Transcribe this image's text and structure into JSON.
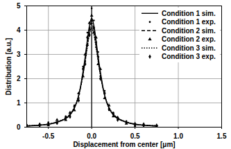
{
  "chart_data": {
    "type": "line",
    "xlabel": "Displacement from center [μm]",
    "ylabel": "Distribution [a.u.]",
    "x": [
      -0.75,
      -0.6,
      -0.5,
      -0.4,
      -0.3,
      -0.25,
      -0.2,
      -0.15,
      -0.1,
      -0.075,
      -0.05,
      -0.025,
      0,
      0.025,
      0.05,
      0.075,
      0.1,
      0.15,
      0.2,
      0.25,
      0.3,
      0.4,
      0.5,
      0.6,
      0.75
    ],
    "series": [
      {
        "name": "Condition 1 sim.",
        "type": "line",
        "line_style": "solid",
        "color": "#000000",
        "values": [
          0.05,
          0.08,
          0.12,
          0.2,
          0.35,
          0.5,
          0.78,
          1.3,
          2.3,
          2.9,
          3.6,
          4.2,
          4.5,
          4.2,
          3.6,
          2.9,
          2.3,
          1.3,
          0.78,
          0.5,
          0.35,
          0.2,
          0.12,
          0.08,
          0.05
        ]
      },
      {
        "name": "Condition 1 exp.",
        "type": "scatter",
        "marker": "circle",
        "color": "#000000",
        "values": [
          0.1,
          0.05,
          0.2,
          0.15,
          0.45,
          0.4,
          0.9,
          1.2,
          2.5,
          2.7,
          3.9,
          4.0,
          4.9,
          4.4,
          3.3,
          3.1,
          2.1,
          1.5,
          0.7,
          0.6,
          0.3,
          0.25,
          0.1,
          0.05,
          0.0
        ]
      },
      {
        "name": "Condition 2 sim.",
        "type": "line",
        "line_style": "dashed",
        "color": "#000000",
        "values": [
          0.05,
          0.08,
          0.12,
          0.21,
          0.37,
          0.52,
          0.8,
          1.3,
          2.2,
          2.8,
          3.45,
          4.0,
          4.3,
          4.0,
          3.45,
          2.8,
          2.2,
          1.3,
          0.8,
          0.52,
          0.37,
          0.21,
          0.12,
          0.08,
          0.05
        ]
      },
      {
        "name": "Condition 2 exp.",
        "type": "scatter",
        "marker": "triangle",
        "color": "#000000",
        "values": [
          0.0,
          0.12,
          0.08,
          0.3,
          0.3,
          0.6,
          0.7,
          1.4,
          2.1,
          3.0,
          3.4,
          4.3,
          4.6,
          3.9,
          3.7,
          2.6,
          2.4,
          1.2,
          0.9,
          0.45,
          0.4,
          0.15,
          0.15,
          0.1,
          0.08
        ]
      },
      {
        "name": "Condition 3 sim.",
        "type": "line",
        "line_style": "dotted",
        "color": "#000000",
        "values": [
          0.06,
          0.09,
          0.13,
          0.22,
          0.38,
          0.54,
          0.82,
          1.32,
          2.15,
          2.7,
          3.3,
          3.85,
          4.1,
          3.85,
          3.3,
          2.7,
          2.15,
          1.32,
          0.82,
          0.54,
          0.38,
          0.22,
          0.13,
          0.09,
          0.06
        ]
      },
      {
        "name": "Condition 3 exp.",
        "type": "scatter",
        "marker": "diamond",
        "color": "#000000",
        "values": [
          0.08,
          0.1,
          0.15,
          0.18,
          0.4,
          0.45,
          0.85,
          1.1,
          2.4,
          2.6,
          3.7,
          3.8,
          4.4,
          4.1,
          3.5,
          2.9,
          2.0,
          1.4,
          0.75,
          0.55,
          0.3,
          0.2,
          0.05,
          0.12,
          0.02
        ]
      }
    ],
    "xlim": [
      -0.75,
      1.5
    ],
    "xticks": [
      {
        "value": -0.5,
        "label": "-0.5"
      },
      {
        "value": 0,
        "label": "0.0"
      },
      {
        "value": 0.5,
        "label": "0.5"
      },
      {
        "value": 1,
        "label": "1.0"
      },
      {
        "value": 1.5,
        "label": "1.5"
      }
    ],
    "ylim": [
      0,
      5
    ],
    "yticks": [
      0,
      1,
      2,
      3,
      4,
      5
    ],
    "grid": true,
    "legend": "upper right"
  }
}
